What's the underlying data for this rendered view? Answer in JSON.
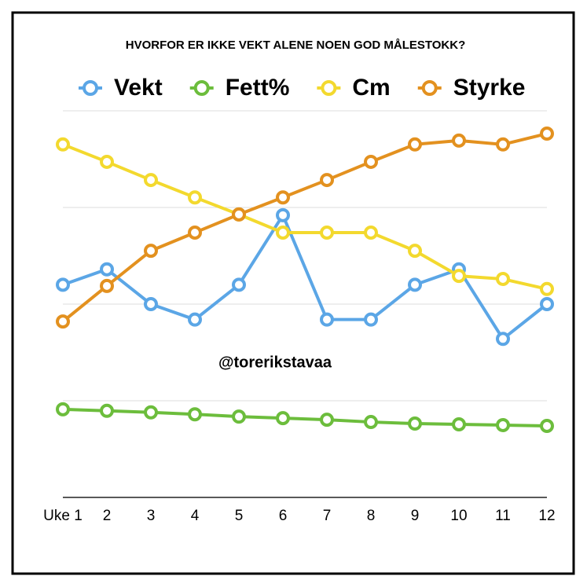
{
  "chart_data": {
    "type": "line",
    "title": "HVORFOR ER IKKE VEKT ALENE NOEN GOD MÅLESTOKK?",
    "annotation": "@torerikstavaa",
    "categories": [
      "Uke 1",
      "2",
      "3",
      "4",
      "5",
      "6",
      "7",
      "8",
      "9",
      "10",
      "11",
      "12"
    ],
    "series": [
      {
        "name": "Vekt",
        "color": "#5ba6e6",
        "values": [
          55,
          59,
          50,
          46,
          55,
          73,
          46,
          46,
          55,
          59,
          41,
          50
        ]
      },
      {
        "name": "Fett%",
        "color": "#6cbd3c",
        "values": [
          22.8,
          22.4,
          22.0,
          21.5,
          20.9,
          20.5,
          20.1,
          19.5,
          19.1,
          18.9,
          18.7,
          18.5
        ]
      },
      {
        "name": "Cm",
        "color": "#f3d92e",
        "values": [
          91.3,
          86.8,
          82.1,
          77.6,
          73.2,
          68.5,
          68.5,
          68.5,
          63.8,
          57.3,
          56.5,
          53.9
        ]
      },
      {
        "name": "Styrke",
        "color": "#e3911f",
        "values": [
          45.5,
          54.7,
          63.8,
          68.5,
          73.2,
          77.6,
          82.1,
          86.8,
          91.3,
          92.3,
          91.3,
          94.1
        ]
      }
    ],
    "ylim": [
      0,
      100
    ],
    "yticks": [
      0,
      25,
      50,
      75,
      100
    ],
    "grid": true
  }
}
